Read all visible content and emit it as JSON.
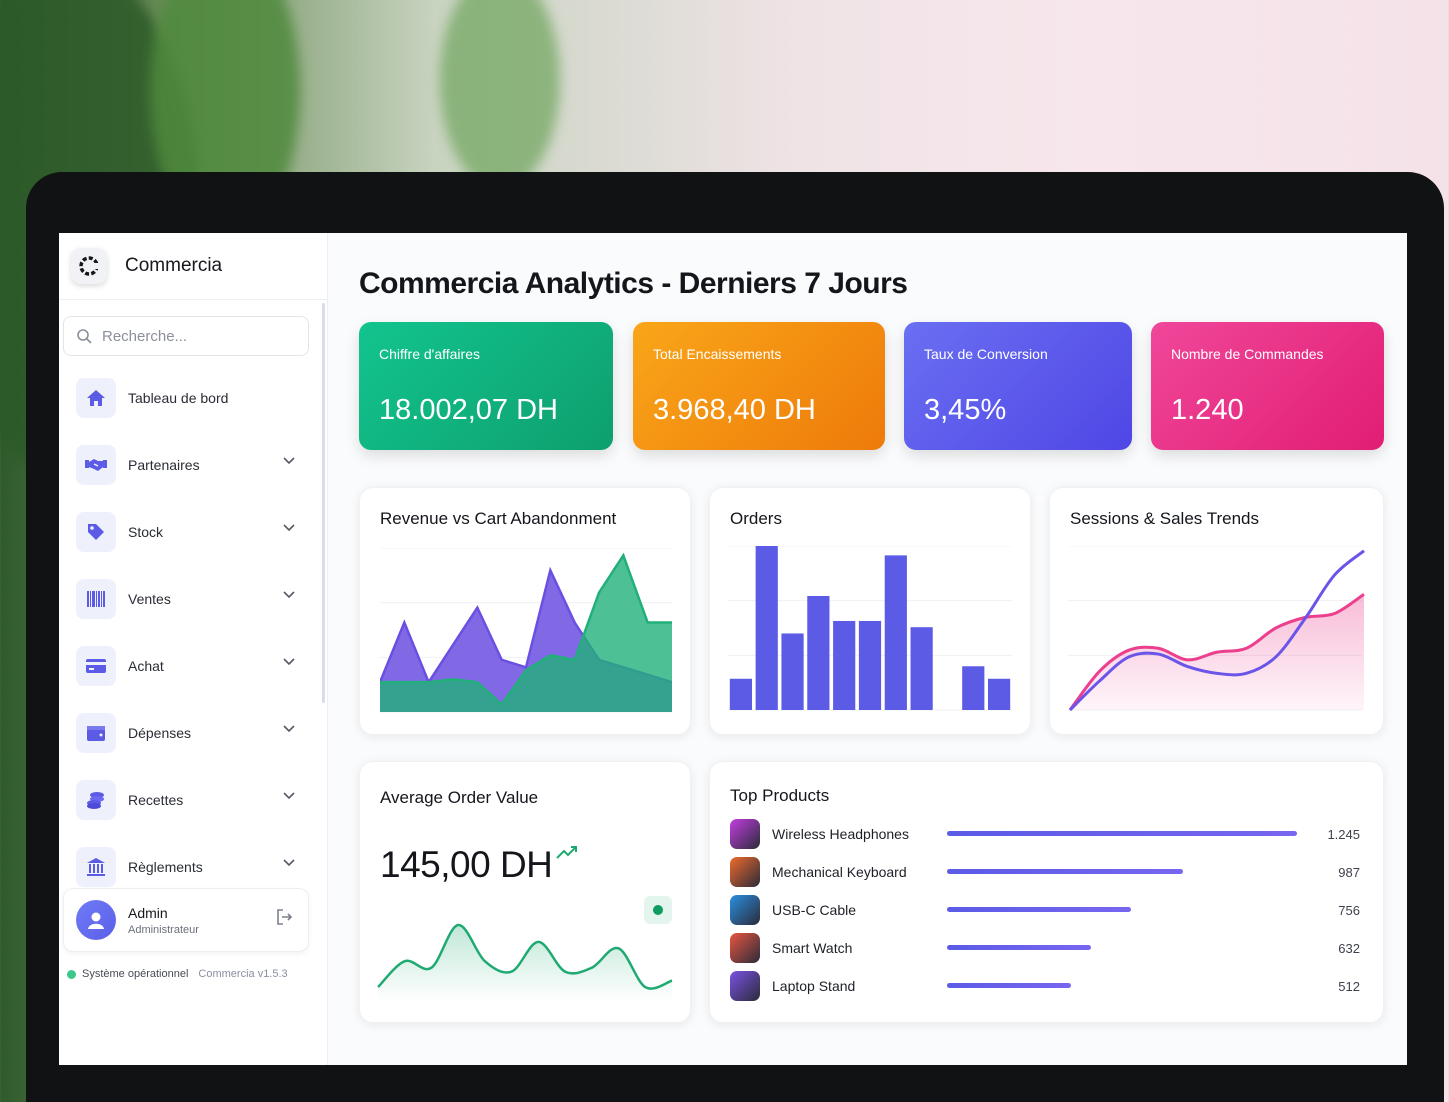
{
  "app": {
    "name": "Commercia"
  },
  "search": {
    "placeholder": "Recherche..."
  },
  "sidebar": {
    "items": [
      {
        "label": "Tableau de bord",
        "icon": "home-icon",
        "expandable": false
      },
      {
        "label": "Partenaires",
        "icon": "handshake-icon",
        "expandable": true
      },
      {
        "label": "Stock",
        "icon": "tag-icon",
        "expandable": true
      },
      {
        "label": "Ventes",
        "icon": "barcode-icon",
        "expandable": true
      },
      {
        "label": "Achat",
        "icon": "credit-card-icon",
        "expandable": true
      },
      {
        "label": "Dépenses",
        "icon": "wallet-icon",
        "expandable": true
      },
      {
        "label": "Recettes",
        "icon": "coins-icon",
        "expandable": true
      },
      {
        "label": "Règlements",
        "icon": "bank-icon",
        "expandable": true
      }
    ],
    "accent": "#5b5be6"
  },
  "user": {
    "name": "Admin",
    "role": "Administrateur"
  },
  "status": {
    "text": "Système opérationnel",
    "version": "Commercia v1.5.3",
    "color": "#3cc88c"
  },
  "page": {
    "title": "Commercia Analytics - Derniers 7 Jours"
  },
  "kpis": [
    {
      "label": "Chiffre d'affaires",
      "value": "18.002,07 DH",
      "color_from": "#12c48e",
      "color_to": "#0e9f6e"
    },
    {
      "label": "Total Encaissements",
      "value": "3.968,40 DH",
      "color_from": "#f9a619",
      "color_to": "#ee7a0a"
    },
    {
      "label": "Taux de Conversion",
      "value": "3,45%",
      "color_from": "#6a6ff2",
      "color_to": "#4f46e5"
    },
    {
      "label": "Nombre de Commandes",
      "value": "1.240",
      "color_from": "#f0479a",
      "color_to": "#e11d74"
    }
  ],
  "cards": {
    "revenue": {
      "title": "Revenue vs Cart Abandonment"
    },
    "orders": {
      "title": "Orders"
    },
    "sessions": {
      "title": "Sessions & Sales Trends"
    },
    "aov": {
      "title": "Average Order Value",
      "value": "145,00 DH",
      "trend": "up"
    },
    "top_products": {
      "title": "Top Products"
    }
  },
  "top_products": [
    {
      "name": "Wireless Headphones",
      "value": "1.245",
      "share": 1.0,
      "icon": "headphones-icon",
      "icon_color": "#c23ee0"
    },
    {
      "name": "Mechanical Keyboard",
      "value": "987",
      "share": 0.675,
      "icon": "keyboard-icon",
      "icon_color": "#ef6a2b"
    },
    {
      "name": "USB-C Cable",
      "value": "756",
      "share": 0.525,
      "icon": "cable-icon",
      "icon_color": "#2a8fe0"
    },
    {
      "name": "Smart Watch",
      "value": "632",
      "share": 0.41,
      "icon": "watch-icon",
      "icon_color": "#e8553f"
    },
    {
      "name": "Laptop Stand",
      "value": "512",
      "share": 0.355,
      "icon": "laptop-stand-icon",
      "icon_color": "#7a52e6"
    }
  ],
  "chart_data": [
    {
      "type": "area",
      "title": "Revenue vs Cart Abandonment",
      "x": [
        0,
        1,
        2,
        3,
        4,
        5,
        6,
        7,
        8,
        9,
        10,
        11,
        12
      ],
      "series": [
        {
          "values": [
            20,
            60,
            20,
            45,
            70,
            35,
            30,
            95,
            60,
            35,
            30,
            25,
            20
          ],
          "color": "#6b4fe2"
        },
        {
          "values": [
            20,
            20,
            20,
            22,
            20,
            5,
            28,
            38,
            35,
            80,
            105,
            60,
            60
          ],
          "color": "#22b07a"
        }
      ],
      "ylim": [
        0,
        110
      ]
    },
    {
      "type": "bar",
      "title": "Orders",
      "categories": [
        "1",
        "2",
        "3",
        "4",
        "5",
        "6",
        "7",
        "8",
        "9",
        "10",
        "11"
      ],
      "values": [
        20,
        105,
        49,
        73,
        57,
        57,
        99,
        53,
        0,
        28,
        20
      ],
      "ylim": [
        0,
        105
      ],
      "color": "#5b5be6"
    },
    {
      "type": "line",
      "title": "Sessions & Sales Trends",
      "x": [
        0,
        1,
        2,
        3,
        4,
        5,
        6,
        7,
        8,
        9,
        10
      ],
      "series": [
        {
          "values": [
            0,
            40,
            62,
            64,
            52,
            60,
            64,
            85,
            96,
            100,
            120
          ],
          "color": "#ec3f8e",
          "fill": true
        },
        {
          "values": [
            0,
            30,
            55,
            58,
            45,
            38,
            38,
            55,
            95,
            140,
            165
          ],
          "color": "#6a55e8",
          "fill": false
        }
      ],
      "ylim": [
        0,
        170
      ]
    },
    {
      "type": "area",
      "title": "Average Order Value",
      "x": [
        0,
        1,
        2,
        3,
        4,
        5,
        6,
        7,
        8,
        9,
        10,
        11
      ],
      "series": [
        {
          "values": [
            10,
            30,
            25,
            58,
            30,
            22,
            45,
            22,
            25,
            40,
            10,
            15
          ],
          "color": "#1faa72"
        }
      ],
      "ylim": [
        0,
        65
      ]
    }
  ]
}
